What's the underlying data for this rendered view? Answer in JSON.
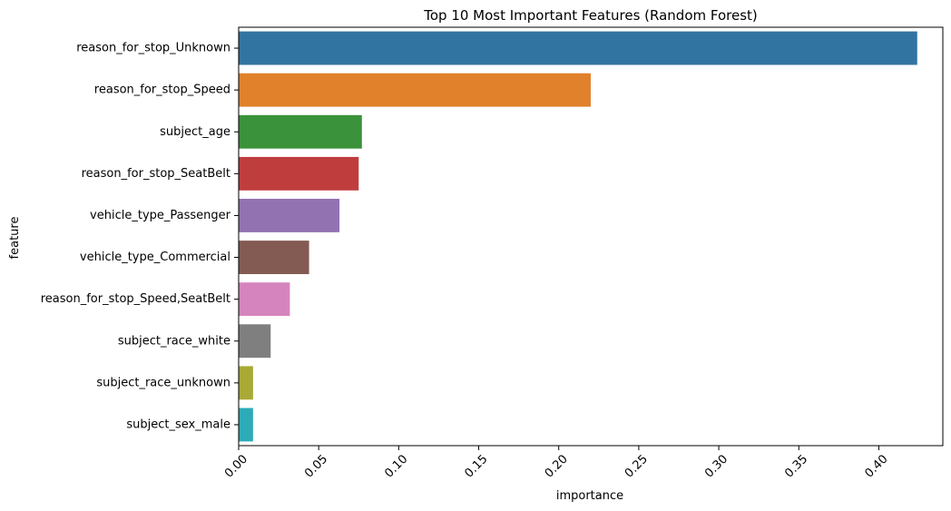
{
  "chart_data": {
    "type": "bar",
    "orientation": "horizontal",
    "title": "Top 10 Most Important Features (Random Forest)",
    "xlabel": "importance",
    "ylabel": "feature",
    "xlim": [
      0,
      0.44
    ],
    "xticks": [
      "0.00",
      "0.05",
      "0.10",
      "0.15",
      "0.20",
      "0.25",
      "0.30",
      "0.35",
      "0.40"
    ],
    "xtick_rotation_deg": 45,
    "grid": false,
    "legend": "none",
    "categories": [
      "reason_for_stop_Unknown",
      "reason_for_stop_Speed",
      "subject_age",
      "reason_for_stop_SeatBelt",
      "vehicle_type_Passenger",
      "vehicle_type_Commercial",
      "reason_for_stop_Speed,SeatBelt",
      "subject_race_white",
      "subject_race_unknown",
      "subject_sex_male"
    ],
    "values": [
      0.424,
      0.22,
      0.077,
      0.075,
      0.063,
      0.044,
      0.032,
      0.02,
      0.009,
      0.009
    ],
    "colors": [
      "#3274a1",
      "#e1812c",
      "#3a923a",
      "#c03d3e",
      "#9372b2",
      "#845b53",
      "#d684bd",
      "#7f7f7f",
      "#a9aa35",
      "#2eabb8"
    ]
  }
}
